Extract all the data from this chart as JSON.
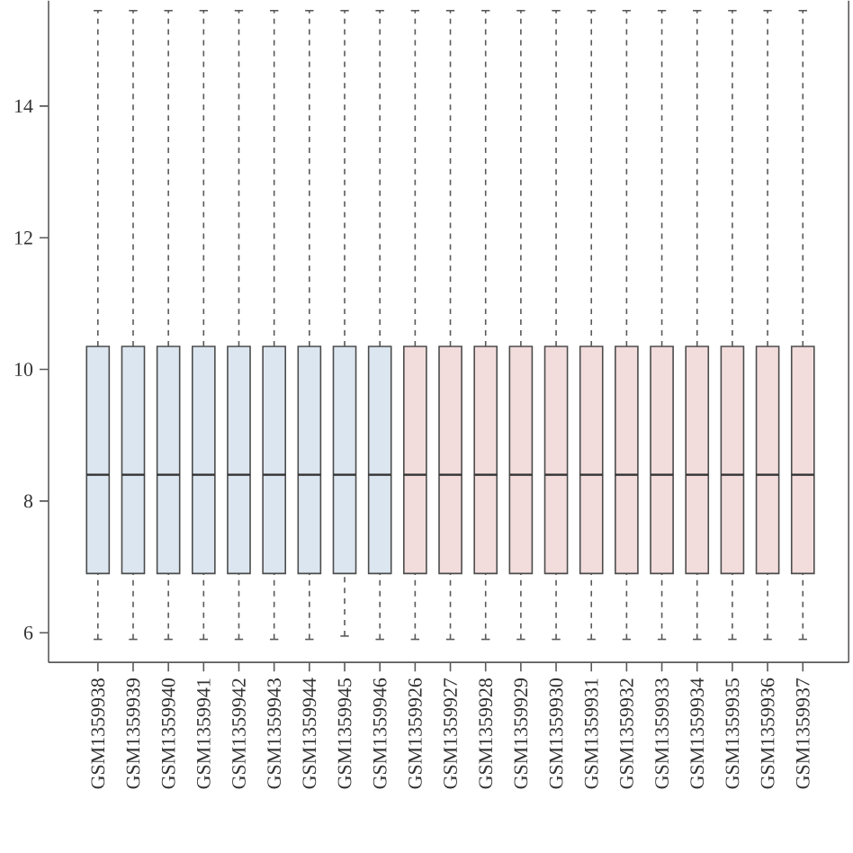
{
  "chart_data": {
    "type": "box",
    "categories": [
      "GSM1359938",
      "GSM1359939",
      "GSM1359940",
      "GSM1359941",
      "GSM1359942",
      "GSM1359943",
      "GSM1359944",
      "GSM1359945",
      "GSM1359946",
      "GSM1359926",
      "GSM1359927",
      "GSM1359928",
      "GSM1359929",
      "GSM1359930",
      "GSM1359931",
      "GSM1359932",
      "GSM1359933",
      "GSM1359934",
      "GSM1359935",
      "GSM1359936",
      "GSM1359937"
    ],
    "boxes": [
      {
        "low": 5.9,
        "q1": 6.9,
        "median": 8.4,
        "q3": 10.35,
        "high": 15.45
      },
      {
        "low": 5.9,
        "q1": 6.9,
        "median": 8.4,
        "q3": 10.35,
        "high": 15.45
      },
      {
        "low": 5.9,
        "q1": 6.9,
        "median": 8.4,
        "q3": 10.35,
        "high": 15.45
      },
      {
        "low": 5.9,
        "q1": 6.9,
        "median": 8.4,
        "q3": 10.35,
        "high": 15.45
      },
      {
        "low": 5.9,
        "q1": 6.9,
        "median": 8.4,
        "q3": 10.35,
        "high": 15.45
      },
      {
        "low": 5.9,
        "q1": 6.9,
        "median": 8.4,
        "q3": 10.35,
        "high": 15.45
      },
      {
        "low": 5.9,
        "q1": 6.9,
        "median": 8.4,
        "q3": 10.35,
        "high": 15.45
      },
      {
        "low": 5.95,
        "q1": 6.9,
        "median": 8.4,
        "q3": 10.35,
        "high": 15.45
      },
      {
        "low": 5.9,
        "q1": 6.9,
        "median": 8.4,
        "q3": 10.35,
        "high": 15.45
      },
      {
        "low": 5.9,
        "q1": 6.9,
        "median": 8.4,
        "q3": 10.35,
        "high": 15.45
      },
      {
        "low": 5.9,
        "q1": 6.9,
        "median": 8.4,
        "q3": 10.35,
        "high": 15.45
      },
      {
        "low": 5.9,
        "q1": 6.9,
        "median": 8.4,
        "q3": 10.35,
        "high": 15.45
      },
      {
        "low": 5.9,
        "q1": 6.9,
        "median": 8.4,
        "q3": 10.35,
        "high": 15.45
      },
      {
        "low": 5.9,
        "q1": 6.9,
        "median": 8.4,
        "q3": 10.35,
        "high": 15.45
      },
      {
        "low": 5.9,
        "q1": 6.9,
        "median": 8.4,
        "q3": 10.35,
        "high": 15.45
      },
      {
        "low": 5.9,
        "q1": 6.9,
        "median": 8.4,
        "q3": 10.35,
        "high": 15.45
      },
      {
        "low": 5.9,
        "q1": 6.9,
        "median": 8.4,
        "q3": 10.35,
        "high": 15.45
      },
      {
        "low": 5.9,
        "q1": 6.9,
        "median": 8.4,
        "q3": 10.35,
        "high": 15.45
      },
      {
        "low": 5.9,
        "q1": 6.9,
        "median": 8.4,
        "q3": 10.35,
        "high": 15.45
      },
      {
        "low": 5.9,
        "q1": 6.9,
        "median": 8.4,
        "q3": 10.35,
        "high": 15.45
      },
      {
        "low": 5.9,
        "q1": 6.9,
        "median": 8.4,
        "q3": 10.35,
        "high": 15.45
      }
    ],
    "colors": [
      "#dce6f0",
      "#dce6f0",
      "#dce6f0",
      "#dce6f0",
      "#dce6f0",
      "#dce6f0",
      "#dce6f0",
      "#dce6f0",
      "#dce6f0",
      "#f2dcdc",
      "#f2dcdc",
      "#f2dcdc",
      "#f2dcdc",
      "#f2dcdc",
      "#f2dcdc",
      "#f2dcdc",
      "#f2dcdc",
      "#f2dcdc",
      "#f2dcdc",
      "#f2dcdc",
      "#f2dcdc"
    ],
    "ylim": [
      5.55,
      15.6
    ],
    "yticks": [
      6,
      8,
      10,
      12,
      14
    ],
    "grid": false,
    "line_style": "dashed"
  }
}
